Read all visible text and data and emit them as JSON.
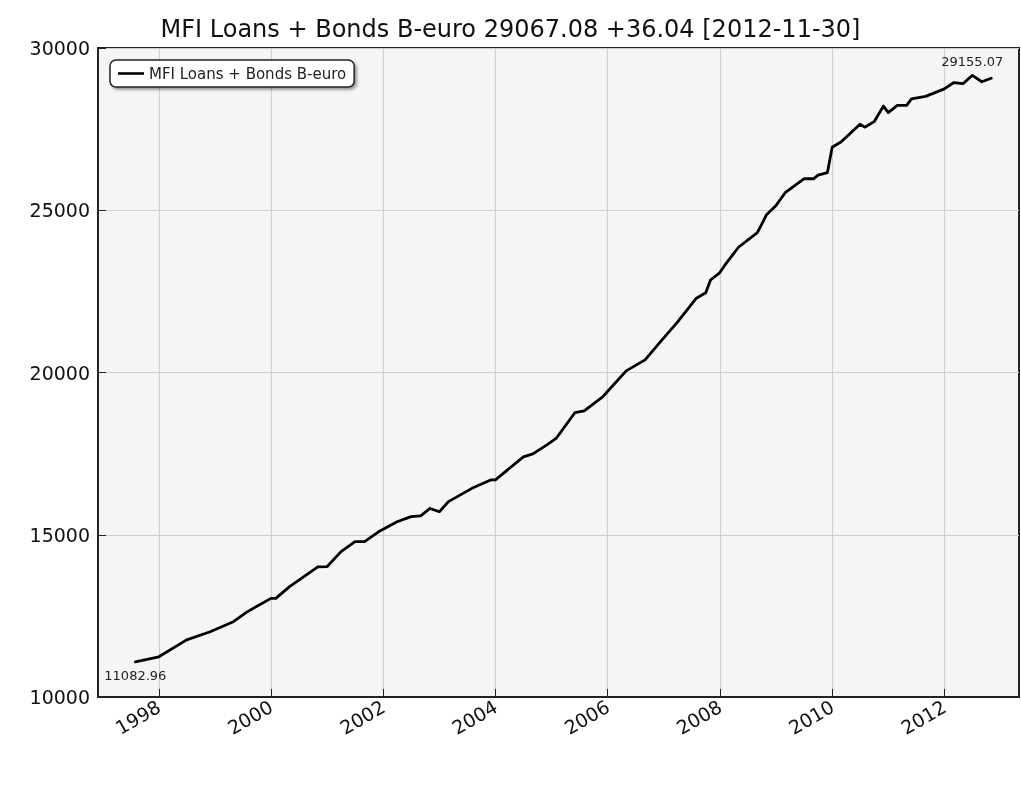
{
  "chart_data": {
    "type": "line",
    "title": "MFI Loans + Bonds B-euro 29067.08 +36.04 [2012-11-30]",
    "x": [
      "1997-08",
      "1998-01",
      "1998-07",
      "1998-12",
      "1999-05",
      "1999-08",
      "2000-01",
      "2000-02",
      "2000-05",
      "2000-11",
      "2001-01",
      "2001-04",
      "2001-07",
      "2001-09",
      "2001-12",
      "2002-04",
      "2002-07",
      "2002-09",
      "2002-11",
      "2003-01",
      "2003-03",
      "2003-08",
      "2003-12",
      "2004-01",
      "2004-07",
      "2004-09",
      "2004-12",
      "2005-02",
      "2005-06",
      "2005-08",
      "2005-12",
      "2006-05",
      "2006-09",
      "2006-12",
      "2007-04",
      "2007-08",
      "2007-10",
      "2007-11",
      "2008-01",
      "2008-02",
      "2008-05",
      "2008-09",
      "2008-11",
      "2009-01",
      "2009-03",
      "2009-07",
      "2009-09",
      "2009-10",
      "2009-12",
      "2010-01",
      "2010-03",
      "2010-07",
      "2010-08",
      "2010-10",
      "2010-12",
      "2011-01",
      "2011-03",
      "2011-05",
      "2011-06",
      "2011-09",
      "2012-01",
      "2012-03",
      "2012-05",
      "2012-07",
      "2012-09",
      "2012-11"
    ],
    "series": [
      {
        "name": "MFI Loans + Bonds B-euro",
        "color": "#000000",
        "values": [
          11082.96,
          11240,
          11760,
          12010,
          12320,
          12630,
          13040,
          13040,
          13400,
          14010,
          14020,
          14480,
          14790,
          14790,
          15090,
          15400,
          15560,
          15580,
          15810,
          15710,
          16020,
          16430,
          16690,
          16690,
          17400,
          17490,
          17770,
          17980,
          18760,
          18820,
          19260,
          20050,
          20390,
          20900,
          21560,
          22290,
          22460,
          22850,
          23080,
          23300,
          23860,
          24310,
          24870,
          25150,
          25540,
          25970,
          25970,
          26080,
          26160,
          26940,
          27110,
          27650,
          27560,
          27730,
          28210,
          28010,
          28230,
          28230,
          28430,
          28510,
          28740,
          28930,
          28900,
          29155.07,
          28960,
          29067.08
        ]
      }
    ],
    "annotations": [
      {
        "text": "11082.96",
        "x": "1997-08",
        "y": 11082.96
      },
      {
        "text": "29155.07",
        "x": "2012-07",
        "y": 29155.07
      }
    ],
    "xlim": [
      "1996-12",
      "2013-05"
    ],
    "xticks": [
      {
        "value": "1998",
        "label": "1998"
      },
      {
        "value": "2000",
        "label": "2000"
      },
      {
        "value": "2002",
        "label": "2002"
      },
      {
        "value": "2004",
        "label": "2004"
      },
      {
        "value": "2006",
        "label": "2006"
      },
      {
        "value": "2008",
        "label": "2008"
      },
      {
        "value": "2010",
        "label": "2010"
      },
      {
        "value": "2012",
        "label": "2012"
      }
    ],
    "ylim": [
      10000,
      30000
    ],
    "yticks": [
      10000,
      15000,
      20000,
      25000,
      30000
    ],
    "grid": true,
    "legend": "top left",
    "marker": "none",
    "line_style": "solid"
  }
}
